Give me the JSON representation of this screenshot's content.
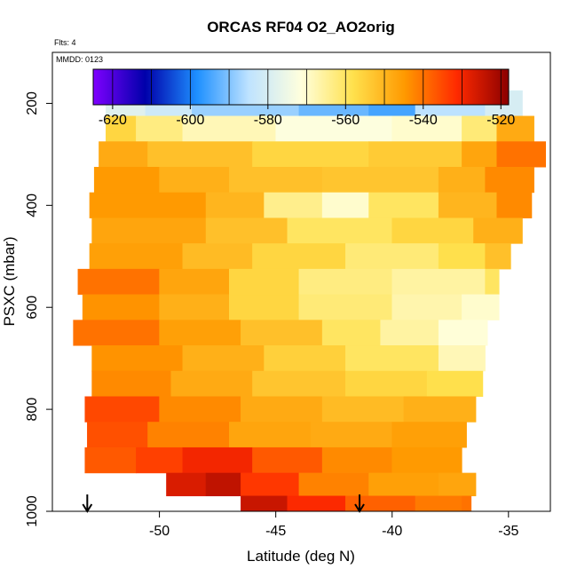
{
  "chart_data": {
    "type": "heatmap",
    "title": "ORCAS RF04 O2_AO2orig",
    "annotations": {
      "flights": "Flts: 4",
      "date": "MMDD: 0123"
    },
    "xlabel": "Latitude (deg N)",
    "ylabel": "PSXC (mbar)",
    "xlim": [
      -54.6,
      -33.2
    ],
    "ylim": [
      1000,
      100
    ],
    "x_ticks": [
      -50,
      -45,
      -40,
      -35
    ],
    "y_ticks": [
      200,
      400,
      600,
      800,
      1000
    ],
    "colorbar": {
      "range": [
        -625,
        -518
      ],
      "ticks": [
        -620,
        -600,
        -580,
        -560,
        -540,
        -520
      ],
      "colors": [
        "#7f00ff",
        "#0000aa",
        "#1e90ff",
        "#bfe3ff",
        "#ffffdd",
        "#ffe14d",
        "#ff9900",
        "#ff2a00",
        "#8b0000"
      ]
    },
    "rows": [
      {
        "p": 200,
        "segments": [
          [
            -52.3,
            -50.6,
            -578
          ],
          [
            -50.6,
            -48.6,
            -582
          ],
          [
            -48.6,
            -44.0,
            -588
          ],
          [
            -44.0,
            -41.0,
            -592
          ],
          [
            -41.0,
            -39.0,
            -595
          ],
          [
            -39.0,
            -36.0,
            -585
          ],
          [
            -36.0,
            -34.4,
            -580
          ]
        ]
      },
      {
        "p": 250,
        "segments": [
          [
            -52.3,
            -51.0,
            -556
          ],
          [
            -51.0,
            -49.0,
            -563
          ],
          [
            -49.0,
            -45.0,
            -568
          ],
          [
            -45.0,
            -40.0,
            -572
          ],
          [
            -40.0,
            -37.0,
            -570
          ],
          [
            -37.0,
            -35.5,
            -562
          ],
          [
            -35.5,
            -33.9,
            -548
          ]
        ]
      },
      {
        "p": 300,
        "segments": [
          [
            -52.6,
            -50.5,
            -548
          ],
          [
            -50.5,
            -46.0,
            -552
          ],
          [
            -46.0,
            -41.0,
            -556
          ],
          [
            -41.0,
            -37.0,
            -554
          ],
          [
            -37.0,
            -35.5,
            -547
          ],
          [
            -35.5,
            -33.4,
            -540
          ]
        ]
      },
      {
        "p": 350,
        "segments": [
          [
            -52.8,
            -50.0,
            -545
          ],
          [
            -50.0,
            -47.0,
            -549
          ],
          [
            -47.0,
            -43.0,
            -552
          ],
          [
            -43.0,
            -38.0,
            -553
          ],
          [
            -38.0,
            -36.0,
            -549
          ],
          [
            -36.0,
            -33.9,
            -543
          ]
        ]
      },
      {
        "p": 400,
        "segments": [
          [
            -53.0,
            -48.0,
            -545
          ],
          [
            -48.0,
            -45.5,
            -550
          ],
          [
            -45.5,
            -43.0,
            -564
          ],
          [
            -43.0,
            -41.0,
            -570
          ],
          [
            -41.0,
            -38.0,
            -560
          ],
          [
            -38.0,
            -35.5,
            -550
          ],
          [
            -35.5,
            -34.0,
            -543
          ]
        ]
      },
      {
        "p": 450,
        "segments": [
          [
            -52.9,
            -48.0,
            -547
          ],
          [
            -48.0,
            -44.5,
            -552
          ],
          [
            -44.5,
            -40.0,
            -560
          ],
          [
            -40.0,
            -36.5,
            -556
          ],
          [
            -36.5,
            -34.4,
            -549
          ]
        ]
      },
      {
        "p": 500,
        "segments": [
          [
            -53.0,
            -49.0,
            -546
          ],
          [
            -49.0,
            -46.0,
            -551
          ],
          [
            -46.0,
            -42.0,
            -556
          ],
          [
            -42.0,
            -38.0,
            -562
          ],
          [
            -38.0,
            -36.0,
            -558
          ],
          [
            -36.0,
            -34.9,
            -552
          ]
        ]
      },
      {
        "p": 550,
        "segments": [
          [
            -53.5,
            -50.0,
            -540
          ],
          [
            -50.0,
            -47.0,
            -547
          ],
          [
            -47.0,
            -44.0,
            -556
          ],
          [
            -44.0,
            -40.0,
            -563
          ],
          [
            -40.0,
            -36.0,
            -566
          ],
          [
            -36.0,
            -35.4,
            -560
          ]
        ]
      },
      {
        "p": 600,
        "segments": [
          [
            -53.3,
            -50.0,
            -544
          ],
          [
            -50.0,
            -47.0,
            -549
          ],
          [
            -47.0,
            -44.0,
            -556
          ],
          [
            -44.0,
            -40.0,
            -562
          ],
          [
            -40.0,
            -37.0,
            -567
          ],
          [
            -37.0,
            -35.4,
            -570
          ]
        ]
      },
      {
        "p": 650,
        "segments": [
          [
            -53.7,
            -50.0,
            -540
          ],
          [
            -50.0,
            -46.5,
            -546
          ],
          [
            -46.5,
            -43.0,
            -552
          ],
          [
            -43.0,
            -40.5,
            -560
          ],
          [
            -40.5,
            -38.0,
            -566
          ],
          [
            -38.0,
            -35.9,
            -571
          ]
        ]
      },
      {
        "p": 700,
        "segments": [
          [
            -52.9,
            -49.0,
            -544
          ],
          [
            -49.0,
            -45.5,
            -549
          ],
          [
            -45.5,
            -42.0,
            -555
          ],
          [
            -42.0,
            -38.0,
            -560
          ],
          [
            -38.0,
            -36.0,
            -568
          ]
        ]
      },
      {
        "p": 750,
        "segments": [
          [
            -52.9,
            -49.5,
            -543
          ],
          [
            -49.5,
            -46.0,
            -548
          ],
          [
            -46.0,
            -42.0,
            -553
          ],
          [
            -42.0,
            -38.5,
            -556
          ],
          [
            -38.5,
            -36.1,
            -558
          ]
        ]
      },
      {
        "p": 800,
        "segments": [
          [
            -53.2,
            -50.0,
            -535
          ],
          [
            -50.0,
            -46.5,
            -543
          ],
          [
            -46.5,
            -43.0,
            -548
          ],
          [
            -43.0,
            -39.5,
            -551
          ],
          [
            -39.5,
            -36.4,
            -549
          ]
        ]
      },
      {
        "p": 850,
        "segments": [
          [
            -53.1,
            -50.5,
            -536
          ],
          [
            -50.5,
            -47.0,
            -542
          ],
          [
            -47.0,
            -43.5,
            -547
          ],
          [
            -43.5,
            -40.0,
            -548
          ],
          [
            -40.0,
            -36.8,
            -546
          ]
        ]
      },
      {
        "p": 900,
        "segments": [
          [
            -53.2,
            -51.0,
            -537
          ],
          [
            -51.0,
            -49.0,
            -534
          ],
          [
            -49.0,
            -46.0,
            -530
          ],
          [
            -46.0,
            -43.0,
            -537
          ],
          [
            -43.0,
            -40.0,
            -543
          ],
          [
            -40.0,
            -37.0,
            -545
          ]
        ]
      },
      {
        "p": 950,
        "segments": [
          [
            -49.7,
            -48.0,
            -527
          ],
          [
            -48.0,
            -46.5,
            -524
          ],
          [
            -46.5,
            -44.0,
            -533
          ],
          [
            -44.0,
            -41.0,
            -542
          ],
          [
            -41.0,
            -38.0,
            -546
          ],
          [
            -38.0,
            -36.4,
            -547
          ]
        ]
      },
      {
        "p": 990,
        "segments": [
          [
            -46.5,
            -44.5,
            -525
          ],
          [
            -44.5,
            -42.0,
            -531
          ],
          [
            -42.0,
            -39.0,
            -538
          ],
          [
            -39.0,
            -37.0,
            -541
          ],
          [
            -37.0,
            -36.6,
            -540
          ]
        ]
      }
    ],
    "markers": [
      {
        "label": "arrow",
        "x": -53.1
      },
      {
        "label": "arrow",
        "x": -41.4
      }
    ]
  }
}
